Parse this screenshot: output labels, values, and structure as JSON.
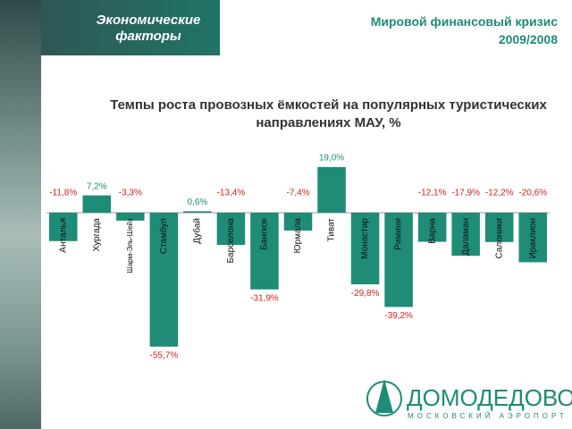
{
  "header": {
    "section": "Экономические факторы",
    "topic": "Мировой финансовый кризис",
    "period": "2009/2008"
  },
  "chart_data": {
    "type": "bar",
    "title": "Темпы роста провозных ёмкостей на популярных туристических направлениях МАУ, %",
    "categories": [
      "Анталья",
      "Хургада",
      "Шарм-Эль-Шейх",
      "Стамбул",
      "Дубай",
      "Барселона",
      "Бангкок",
      "Юрмала",
      "Тиват",
      "Монастир",
      "Римини",
      "Варна",
      "Даламан",
      "Салоники",
      "Ираклион"
    ],
    "values": [
      -11.8,
      7.2,
      -3.3,
      -55.7,
      0.6,
      -13.4,
      -31.9,
      -7.4,
      19.0,
      -29.8,
      -39.2,
      -12.1,
      -17.9,
      -12.2,
      -20.6
    ],
    "value_labels": [
      "-11,8%",
      "7,2%",
      "-3,3%",
      "-55,7%",
      "0,6%",
      "-13,4%",
      "-31,9%",
      "-7,4%",
      "19,0%",
      "-29,8%",
      "-39,2%",
      "-12,1%",
      "-17,9%",
      "-12,2%",
      "-20,6%"
    ],
    "color": "#1e8c76"
  },
  "logo": {
    "name": "ДОМОДЕДОВО",
    "subtitle": "МОСКОВСКИЙ АЭРОПОРТ"
  }
}
